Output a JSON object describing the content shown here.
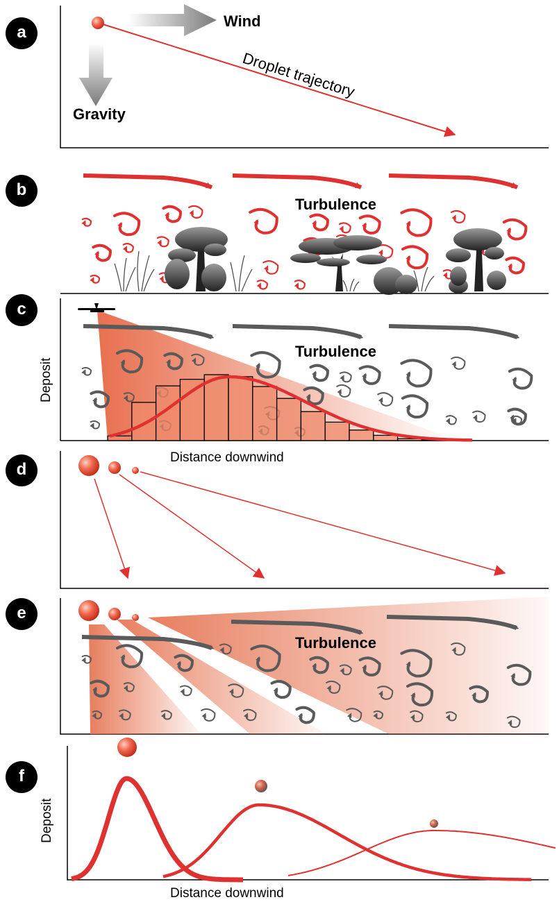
{
  "panels": [
    {
      "label": "a"
    },
    {
      "label": "b"
    },
    {
      "label": "c"
    },
    {
      "label": "d"
    },
    {
      "label": "e"
    },
    {
      "label": "f"
    }
  ],
  "panel_a": {
    "wind": "Wind",
    "gravity": "Gravity",
    "trajectory": "Droplet trajectory"
  },
  "panel_b": {
    "turbulence": "Turbulence"
  },
  "panel_c": {
    "turbulence": "Turbulence",
    "ylabel": "Deposit",
    "xlabel": "Distance downwind",
    "histogram": [
      0.07,
      0.58,
      0.83,
      0.93,
      1.0,
      0.97,
      0.82,
      0.64,
      0.44,
      0.28,
      0.16,
      0.08,
      0.03,
      0.01
    ]
  },
  "panel_e": {
    "turbulence": "Turbulence"
  },
  "panel_f": {
    "ylabel": "Deposit",
    "xlabel": "Distance downwind"
  },
  "colors": {
    "accent": "#e03131",
    "plume": "#ef8a6a",
    "swirl": "#5a5a5a",
    "ink": "#000000"
  }
}
